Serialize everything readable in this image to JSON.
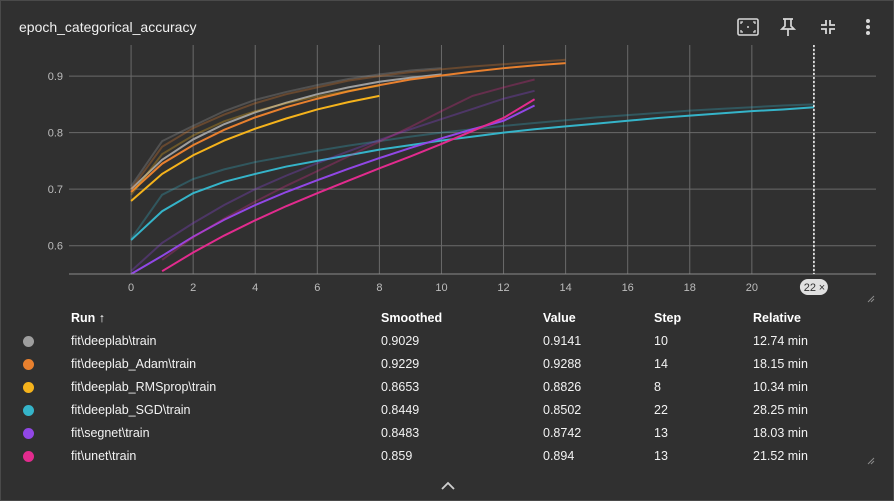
{
  "card": {
    "title": "epoch_categorical_accuracy",
    "toolbar": [
      {
        "name": "fit-domain-icon"
      },
      {
        "name": "pin-icon"
      },
      {
        "name": "collapse-icon"
      },
      {
        "name": "more-vert-icon"
      }
    ]
  },
  "chart_data": {
    "type": "line",
    "title": "epoch_categorical_accuracy",
    "xlabel": "",
    "ylabel": "",
    "xlim": [
      -2,
      24
    ],
    "ylim": [
      0.55,
      0.955
    ],
    "x_ticks": [
      "0",
      "2",
      "4",
      "6",
      "8",
      "10",
      "12",
      "14",
      "16",
      "18",
      "20",
      "22"
    ],
    "x_tick_values": [
      0,
      2,
      4,
      6,
      8,
      10,
      12,
      14,
      16,
      18,
      20,
      22
    ],
    "y_ticks": [
      "0.6",
      "0.7",
      "0.8",
      "0.9"
    ],
    "y_tick_values": [
      0.6,
      0.7,
      0.8,
      0.9
    ],
    "cursor_step": 22,
    "cursor_label": "22",
    "grid": true,
    "series": [
      {
        "name": "fit\\deeplab\\train",
        "color": "#9e9e9e",
        "x": [
          0,
          1,
          2,
          3,
          4,
          5,
          6,
          7,
          8,
          9,
          10
        ],
        "smoothed": [
          0.7,
          0.752,
          0.788,
          0.815,
          0.836,
          0.853,
          0.868,
          0.88,
          0.89,
          0.897,
          0.903
        ],
        "raw": [
          0.705,
          0.785,
          0.812,
          0.838,
          0.858,
          0.872,
          0.884,
          0.895,
          0.903,
          0.91,
          0.914
        ]
      },
      {
        "name": "fit\\deeplab_Adam\\train",
        "color": "#e8802e",
        "x": [
          0,
          1,
          2,
          3,
          4,
          5,
          6,
          7,
          8,
          9,
          10,
          11,
          12,
          13,
          14
        ],
        "smoothed": [
          0.695,
          0.745,
          0.778,
          0.805,
          0.827,
          0.845,
          0.86,
          0.873,
          0.884,
          0.894,
          0.901,
          0.908,
          0.914,
          0.919,
          0.923
        ],
        "raw": [
          0.7,
          0.775,
          0.808,
          0.832,
          0.852,
          0.868,
          0.88,
          0.892,
          0.9,
          0.907,
          0.912,
          0.917,
          0.921,
          0.925,
          0.929
        ]
      },
      {
        "name": "fit\\deeplab_RMSprop\\train",
        "color": "#f5b31c",
        "x": [
          0,
          1,
          2,
          3,
          4,
          5,
          6,
          7,
          8
        ],
        "smoothed": [
          0.679,
          0.727,
          0.76,
          0.786,
          0.807,
          0.825,
          0.841,
          0.854,
          0.865
        ],
        "raw": [
          0.69,
          0.762,
          0.795,
          0.82,
          0.838,
          0.852,
          0.864,
          0.874,
          0.883
        ]
      },
      {
        "name": "fit\\deeplab_SGD\\train",
        "color": "#35b4c9",
        "x": [
          0,
          1,
          2,
          3,
          4,
          5,
          6,
          7,
          8,
          9,
          10,
          11,
          12,
          13,
          14,
          15,
          16,
          17,
          18,
          19,
          20,
          21,
          22
        ],
        "smoothed": [
          0.61,
          0.661,
          0.693,
          0.713,
          0.727,
          0.74,
          0.75,
          0.76,
          0.77,
          0.778,
          0.786,
          0.793,
          0.8,
          0.806,
          0.811,
          0.816,
          0.821,
          0.826,
          0.83,
          0.834,
          0.838,
          0.841,
          0.845
        ],
        "raw": [
          0.612,
          0.69,
          0.718,
          0.735,
          0.748,
          0.758,
          0.768,
          0.777,
          0.785,
          0.793,
          0.8,
          0.806,
          0.812,
          0.817,
          0.822,
          0.827,
          0.831,
          0.835,
          0.839,
          0.842,
          0.845,
          0.848,
          0.85
        ]
      },
      {
        "name": "fit\\segnet\\train",
        "color": "#9147e6",
        "x": [
          0,
          1,
          2,
          3,
          4,
          5,
          6,
          7,
          8,
          9,
          10,
          11,
          12,
          13
        ],
        "smoothed": [
          0.545,
          0.582,
          0.616,
          0.646,
          0.672,
          0.695,
          0.716,
          0.736,
          0.755,
          0.773,
          0.79,
          0.806,
          0.821,
          0.848
        ],
        "raw": [
          0.555,
          0.605,
          0.64,
          0.672,
          0.7,
          0.724,
          0.746,
          0.767,
          0.787,
          0.806,
          0.824,
          0.842,
          0.86,
          0.874
        ]
      },
      {
        "name": "fit\\unet\\train",
        "color": "#e22b8e",
        "x": [
          1,
          2,
          3,
          4,
          5,
          6,
          7,
          8,
          9,
          10,
          11,
          12,
          13
        ],
        "smoothed": [
          0.555,
          0.588,
          0.618,
          0.645,
          0.67,
          0.693,
          0.715,
          0.737,
          0.758,
          0.78,
          0.803,
          0.826,
          0.859
        ],
        "raw": [
          0.575,
          0.615,
          0.648,
          0.678,
          0.706,
          0.732,
          0.758,
          0.784,
          0.81,
          0.838,
          0.865,
          0.88,
          0.894
        ]
      }
    ]
  },
  "table": {
    "headers": {
      "run": "Run ↑",
      "smoothed": "Smoothed",
      "value": "Value",
      "step": "Step",
      "relative": "Relative"
    },
    "rows": [
      {
        "color": "#9e9e9e",
        "run": "fit\\deeplab\\train",
        "smoothed": "0.9029",
        "value": "0.9141",
        "step": "10",
        "relative": "12.74 min"
      },
      {
        "color": "#e8802e",
        "run": "fit\\deeplab_Adam\\train",
        "smoothed": "0.9229",
        "value": "0.9288",
        "step": "14",
        "relative": "18.15 min"
      },
      {
        "color": "#f5b31c",
        "run": "fit\\deeplab_RMSprop\\train",
        "smoothed": "0.8653",
        "value": "0.8826",
        "step": "8",
        "relative": "10.34 min"
      },
      {
        "color": "#35b4c9",
        "run": "fit\\deeplab_SGD\\train",
        "smoothed": "0.8449",
        "value": "0.8502",
        "step": "22",
        "relative": "28.25 min"
      },
      {
        "color": "#9147e6",
        "run": "fit\\segnet\\train",
        "smoothed": "0.8483",
        "value": "0.8742",
        "step": "13",
        "relative": "18.03 min"
      },
      {
        "color": "#e22b8e",
        "run": "fit\\unet\\train",
        "smoothed": "0.859",
        "value": "0.894",
        "step": "13",
        "relative": "21.52 min"
      }
    ]
  }
}
